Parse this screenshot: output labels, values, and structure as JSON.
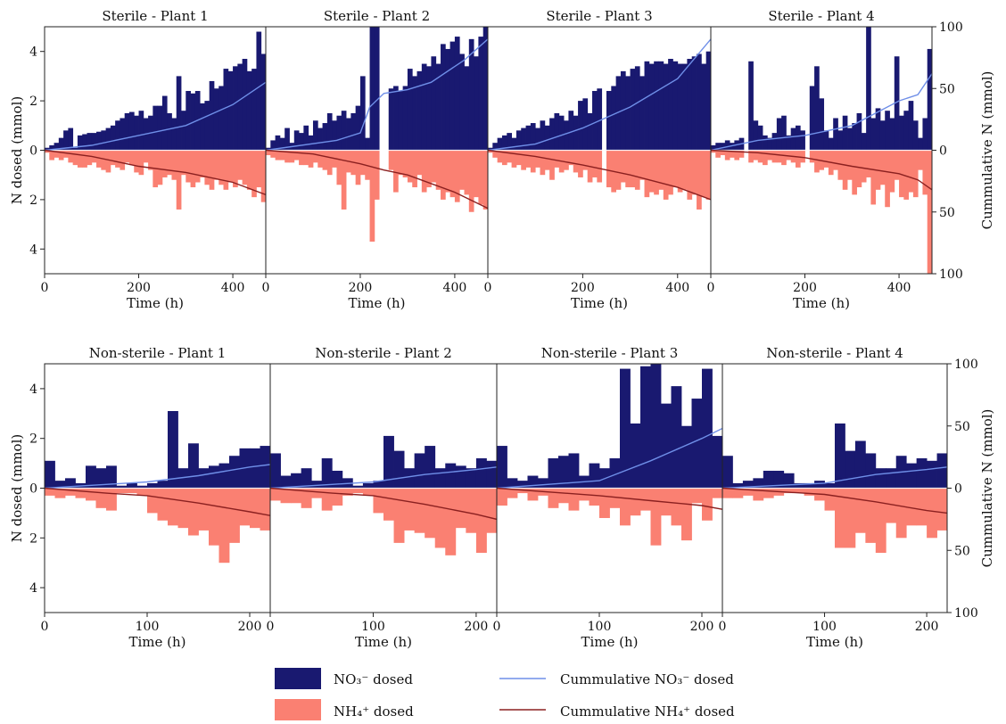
{
  "legend": {
    "no3_bar": "NO₃⁻ dosed",
    "nh4_bar": "NH₄⁺ dosed",
    "no3_line": "Cummulative NO₃⁻ dosed",
    "nh4_line": "Cummulative NH₄⁺ dosed"
  },
  "colors": {
    "no3_bar": "#191970",
    "nh4_bar": "#fa8072",
    "no3_line": "#6f8fe8",
    "nh4_line": "#8b2020"
  },
  "chart_data": [
    {
      "type": "bar",
      "title": "Sterile - Plant 1",
      "xlabel": "Time (h)",
      "ylabel": "N dosed (mmol)",
      "y2label": "",
      "xlim": [
        0,
        470
      ],
      "xticks": [
        0,
        200,
        400
      ],
      "ylim": [
        -5,
        5
      ],
      "yticks": [
        "4",
        "2",
        "0",
        "2",
        "4"
      ],
      "y2lim": [
        -100,
        100
      ],
      "y2ticks": [],
      "bin_width": 10,
      "no3": [
        0.1,
        0.2,
        0.3,
        0.5,
        0.8,
        0.9,
        0.1,
        0.6,
        0.65,
        0.7,
        0.7,
        0.75,
        0.8,
        0.9,
        1.0,
        1.2,
        1.3,
        1.5,
        1.55,
        1.4,
        1.6,
        1.3,
        1.4,
        1.8,
        1.8,
        2.2,
        1.5,
        1.3,
        3.0,
        1.6,
        2.4,
        2.3,
        2.4,
        1.9,
        2.0,
        2.8,
        2.5,
        2.6,
        3.3,
        3.2,
        3.4,
        3.5,
        3.7,
        3.2,
        3.3,
        4.8,
        3.9
      ],
      "nh4": [
        0.1,
        0.4,
        0.3,
        0.4,
        0.3,
        0.5,
        0.6,
        0.7,
        0.7,
        0.6,
        0.5,
        0.7,
        0.8,
        0.9,
        0.6,
        0.7,
        0.8,
        0.5,
        0.6,
        0.9,
        1.0,
        0.5,
        0.8,
        1.5,
        1.4,
        1.1,
        1.0,
        1.2,
        2.4,
        1.0,
        1.3,
        1.5,
        1.3,
        1.1,
        1.4,
        1.6,
        1.2,
        1.4,
        1.6,
        1.3,
        1.5,
        1.2,
        1.4,
        1.6,
        1.9,
        1.5,
        2.1
      ],
      "cum_no3": [
        [
          0,
          0
        ],
        [
          100,
          4
        ],
        [
          200,
          12
        ],
        [
          300,
          20
        ],
        [
          400,
          37
        ],
        [
          470,
          55
        ]
      ],
      "cum_nh4": [
        [
          0,
          0
        ],
        [
          100,
          -5
        ],
        [
          200,
          -13
        ],
        [
          300,
          -18
        ],
        [
          400,
          -26
        ],
        [
          470,
          -36
        ]
      ]
    },
    {
      "type": "bar",
      "title": "Sterile - Plant 2",
      "xlabel": "Time (h)",
      "ylabel": "",
      "y2label": "",
      "xlim": [
        0,
        470
      ],
      "xticks": [
        0,
        200,
        400
      ],
      "ylim": [
        -5,
        5
      ],
      "yticks": [],
      "y2lim": [
        -100,
        100
      ],
      "y2ticks": [],
      "bin_width": 10,
      "no3": [
        0.1,
        0.4,
        0.6,
        0.5,
        0.9,
        0.3,
        0.8,
        0.7,
        1.0,
        0.6,
        1.2,
        0.9,
        1.1,
        1.5,
        1.2,
        1.4,
        1.6,
        1.3,
        1.5,
        1.8,
        3.0,
        0.5,
        5.0,
        5.0,
        0,
        0,
        2.5,
        2.6,
        2.4,
        2.6,
        3.3,
        3.0,
        3.2,
        3.5,
        3.4,
        3.8,
        3.5,
        4.3,
        4.1,
        4.4,
        4.6,
        3.9,
        3.4,
        4.5,
        3.8,
        4.6,
        5.0
      ],
      "nh4": [
        0.2,
        0.3,
        0.4,
        0.4,
        0.5,
        0.5,
        0.4,
        0.6,
        0.6,
        0.7,
        0.5,
        0.7,
        0.8,
        1.0,
        0.7,
        1.4,
        2.4,
        0.9,
        1.0,
        1.4,
        1.0,
        1.2,
        3.7,
        2.0,
        0,
        0,
        0.8,
        1.7,
        1.0,
        1.1,
        1.3,
        1.5,
        1.0,
        1.7,
        1.5,
        1.3,
        1.6,
        2.0,
        1.7,
        1.9,
        2.1,
        1.6,
        1.8,
        2.5,
        1.9,
        2.2,
        2.4
      ],
      "cum_no3": [
        [
          0,
          0
        ],
        [
          150,
          8
        ],
        [
          200,
          14
        ],
        [
          220,
          35
        ],
        [
          250,
          46
        ],
        [
          300,
          49
        ],
        [
          350,
          55
        ],
        [
          420,
          73
        ],
        [
          470,
          90
        ]
      ],
      "cum_nh4": [
        [
          0,
          0
        ],
        [
          100,
          -3
        ],
        [
          200,
          -11
        ],
        [
          250,
          -16
        ],
        [
          300,
          -20
        ],
        [
          400,
          -34
        ],
        [
          470,
          -47
        ]
      ]
    },
    {
      "type": "bar",
      "title": "Sterile - Plant 3",
      "xlabel": "Time (h)",
      "ylabel": "",
      "y2label": "",
      "xlim": [
        0,
        470
      ],
      "xticks": [
        0,
        200,
        400
      ],
      "ylim": [
        -5,
        5
      ],
      "yticks": [],
      "y2lim": [
        -100,
        100
      ],
      "y2ticks": [],
      "bin_width": 10,
      "no3": [
        0.1,
        0.3,
        0.5,
        0.6,
        0.7,
        0.5,
        0.8,
        0.9,
        1.0,
        1.1,
        0.9,
        1.2,
        1.0,
        1.3,
        1.5,
        1.4,
        1.2,
        1.6,
        1.4,
        2.0,
        2.1,
        1.5,
        2.4,
        2.5,
        0,
        2.4,
        2.6,
        3.0,
        3.2,
        3.0,
        3.3,
        3.4,
        3.0,
        3.6,
        3.5,
        3.6,
        3.6,
        3.5,
        3.7,
        3.6,
        3.5,
        3.5,
        3.7,
        3.8,
        3.9,
        3.5,
        4.0
      ],
      "nh4": [
        0.1,
        0.3,
        0.5,
        0.6,
        0.5,
        0.7,
        0.6,
        0.8,
        0.7,
        0.9,
        0.7,
        1.0,
        0.8,
        1.2,
        0.7,
        0.9,
        0.8,
        0.6,
        0.9,
        1.1,
        0.8,
        1.3,
        1.1,
        1.3,
        0,
        1.5,
        1.7,
        1.6,
        1.3,
        1.5,
        1.5,
        1.6,
        1.2,
        1.9,
        1.7,
        1.8,
        1.6,
        2.0,
        1.8,
        1.5,
        1.7,
        1.6,
        2.0,
        1.8,
        2.4,
        1.9,
        2.0
      ],
      "cum_no3": [
        [
          0,
          0
        ],
        [
          100,
          5
        ],
        [
          200,
          18
        ],
        [
          300,
          35
        ],
        [
          400,
          58
        ],
        [
          470,
          90
        ]
      ],
      "cum_nh4": [
        [
          0,
          0
        ],
        [
          100,
          -5
        ],
        [
          200,
          -12
        ],
        [
          300,
          -20
        ],
        [
          400,
          -30
        ],
        [
          470,
          -40
        ]
      ]
    },
    {
      "type": "bar",
      "title": "Sterile - Plant 4",
      "xlabel": "Time (h)",
      "ylabel": "",
      "y2label": "Cummulative N (mmol)",
      "xlim": [
        0,
        470
      ],
      "xticks": [
        0,
        200,
        400
      ],
      "ylim": [
        -5,
        5
      ],
      "yticks": [],
      "y2lim": [
        -100,
        100
      ],
      "y2ticks": [
        "100",
        "50",
        "0",
        "50",
        "100"
      ],
      "bin_width": 10,
      "no3": [
        0.2,
        0.3,
        0.3,
        0.4,
        0.3,
        0.4,
        0.5,
        0,
        3.6,
        1.2,
        1.0,
        0.6,
        0.5,
        0.7,
        1.3,
        1.4,
        0.6,
        0.9,
        1.0,
        0.8,
        0,
        2.6,
        3.4,
        2.1,
        0.8,
        0.5,
        1.3,
        0.8,
        1.4,
        0.9,
        1.1,
        1.5,
        0.7,
        5.0,
        1.3,
        1.7,
        1.2,
        1.6,
        1.3,
        3.8,
        1.4,
        1.6,
        2.0,
        1.2,
        0.5,
        1.3,
        4.1,
        5.0
      ],
      "nh4": [
        0.1,
        0.3,
        0.2,
        0.4,
        0.3,
        0.4,
        0.3,
        0,
        0.5,
        0.4,
        0.5,
        0.6,
        0.4,
        0.5,
        0.5,
        0.6,
        0.4,
        0.5,
        0.7,
        0.5,
        0,
        0.5,
        0.9,
        0.8,
        0.7,
        1.0,
        0.8,
        1.2,
        1.6,
        1.2,
        1.8,
        1.5,
        1.3,
        1.1,
        2.2,
        1.6,
        1.4,
        2.3,
        1.7,
        1.2,
        1.9,
        2.0,
        1.7,
        1.9,
        0.8,
        1.8,
        5.0,
        5.0
      ],
      "cum_no3": [
        [
          0,
          0
        ],
        [
          100,
          8
        ],
        [
          200,
          12
        ],
        [
          300,
          20
        ],
        [
          400,
          40
        ],
        [
          440,
          45
        ],
        [
          470,
          62
        ]
      ],
      "cum_nh4": [
        [
          0,
          0
        ],
        [
          100,
          -2
        ],
        [
          200,
          -6
        ],
        [
          300,
          -13
        ],
        [
          400,
          -19
        ],
        [
          440,
          -24
        ],
        [
          470,
          -32
        ]
      ]
    },
    {
      "type": "bar",
      "title": "Non-sterile - Plant 1",
      "xlabel": "Time (h)",
      "ylabel": "N dosed (mmol)",
      "y2label": "",
      "xlim": [
        0,
        220
      ],
      "xticks": [
        0,
        100,
        200
      ],
      "ylim": [
        -5,
        5
      ],
      "yticks": [
        "4",
        "2",
        "0",
        "2",
        "4"
      ],
      "y2lim": [
        -100,
        100
      ],
      "y2ticks": [],
      "bin_width": 10,
      "no3": [
        1.1,
        0.3,
        0.4,
        0.2,
        0.9,
        0.8,
        0.9,
        0.1,
        0.2,
        0.1,
        0.2,
        0.3,
        3.1,
        0.8,
        1.8,
        0.8,
        0.9,
        1.0,
        1.3,
        1.6,
        1.6,
        1.7,
        1.8
      ],
      "nh4": [
        0.3,
        0.4,
        0.3,
        0.4,
        0.5,
        0.8,
        0.9,
        0.2,
        0.2,
        0.3,
        1.0,
        1.3,
        1.5,
        1.6,
        1.9,
        1.7,
        2.3,
        3.0,
        2.2,
        1.5,
        1.6,
        1.7,
        1.5
      ],
      "cum_no3": [
        [
          0,
          0
        ],
        [
          60,
          3
        ],
        [
          100,
          5
        ],
        [
          150,
          10
        ],
        [
          200,
          17
        ],
        [
          220,
          19
        ]
      ],
      "cum_nh4": [
        [
          0,
          0
        ],
        [
          60,
          -4
        ],
        [
          100,
          -6
        ],
        [
          150,
          -12
        ],
        [
          200,
          -19
        ],
        [
          220,
          -22
        ]
      ]
    },
    {
      "type": "bar",
      "title": "Non-sterile - Plant 2",
      "xlabel": "Time (h)",
      "ylabel": "",
      "y2label": "",
      "xlim": [
        0,
        220
      ],
      "xticks": [
        0,
        100,
        200
      ],
      "ylim": [
        -5,
        5
      ],
      "yticks": [],
      "y2lim": [
        -100,
        100
      ],
      "y2ticks": [],
      "bin_width": 10,
      "no3": [
        1.4,
        0.5,
        0.6,
        0.8,
        0.3,
        1.2,
        0.7,
        0.4,
        0.1,
        0.2,
        0.3,
        2.1,
        1.5,
        0.8,
        1.4,
        1.7,
        0.8,
        1.0,
        0.9,
        0.8,
        1.2,
        1.1,
        1.2
      ],
      "nh4": [
        0.5,
        0.6,
        0.6,
        0.8,
        0.4,
        0.9,
        0.7,
        0.3,
        0.2,
        0.3,
        1.0,
        1.3,
        2.2,
        1.7,
        1.8,
        2.0,
        2.4,
        2.7,
        1.6,
        1.8,
        2.6,
        1.8,
        1.8
      ],
      "cum_no3": [
        [
          0,
          0
        ],
        [
          60,
          3
        ],
        [
          100,
          5
        ],
        [
          150,
          11
        ],
        [
          200,
          15
        ],
        [
          220,
          17
        ]
      ],
      "cum_nh4": [
        [
          0,
          0
        ],
        [
          60,
          -4
        ],
        [
          100,
          -6
        ],
        [
          150,
          -13
        ],
        [
          200,
          -21
        ],
        [
          220,
          -25
        ]
      ]
    },
    {
      "type": "bar",
      "title": "Non-sterile - Plant 3",
      "xlabel": "Time (h)",
      "ylabel": "",
      "y2label": "",
      "xlim": [
        0,
        220
      ],
      "xticks": [
        0,
        100,
        200
      ],
      "ylim": [
        -5,
        5
      ],
      "yticks": [],
      "y2lim": [
        -100,
        100
      ],
      "y2ticks": [],
      "bin_width": 10,
      "no3": [
        1.7,
        0.4,
        0.3,
        0.5,
        0.4,
        1.2,
        1.3,
        1.4,
        0.5,
        1.0,
        0.8,
        1.2,
        4.8,
        2.6,
        4.9,
        5.0,
        3.4,
        4.1,
        2.5,
        3.6,
        4.8,
        2.1,
        5.0
      ],
      "nh4": [
        0.7,
        0.4,
        0.2,
        0.5,
        0.3,
        0.8,
        0.6,
        0.9,
        0.5,
        0.7,
        1.2,
        0.8,
        1.5,
        1.1,
        0.9,
        2.3,
        1.1,
        1.5,
        2.1,
        0.6,
        1.3,
        0.4,
        3.0
      ],
      "cum_no3": [
        [
          0,
          0
        ],
        [
          100,
          6
        ],
        [
          150,
          22
        ],
        [
          200,
          40
        ],
        [
          220,
          48
        ]
      ],
      "cum_nh4": [
        [
          0,
          0
        ],
        [
          100,
          -6
        ],
        [
          150,
          -10
        ],
        [
          200,
          -14
        ],
        [
          220,
          -17
        ]
      ]
    },
    {
      "type": "bar",
      "title": "Non-sterile - Plant 4",
      "xlabel": "Time (h)",
      "ylabel": "",
      "y2label": "Cummulative N (mmol)",
      "xlim": [
        0,
        220
      ],
      "xticks": [
        0,
        100,
        200
      ],
      "ylim": [
        -5,
        5
      ],
      "yticks": [],
      "y2lim": [
        -100,
        100
      ],
      "y2ticks": [
        "100",
        "50",
        "0",
        "50",
        "100"
      ],
      "bin_width": 10,
      "no3": [
        1.3,
        0.2,
        0.3,
        0.4,
        0.7,
        0.7,
        0.6,
        0.2,
        0.2,
        0.3,
        0.2,
        2.6,
        1.5,
        1.9,
        1.4,
        0.8,
        0.8,
        1.3,
        1.0,
        1.2,
        1.1,
        1.4
      ],
      "nh4": [
        0.4,
        0.4,
        0.3,
        0.5,
        0.4,
        0.3,
        0.2,
        0.2,
        0.3,
        0.5,
        0.9,
        2.4,
        2.4,
        1.8,
        2.2,
        2.6,
        1.4,
        2.0,
        1.5,
        1.5,
        2.0,
        1.7
      ],
      "cum_no3": [
        [
          0,
          0
        ],
        [
          100,
          4
        ],
        [
          150,
          11
        ],
        [
          200,
          15
        ],
        [
          220,
          17
        ]
      ],
      "cum_nh4": [
        [
          0,
          0
        ],
        [
          100,
          -5
        ],
        [
          150,
          -11
        ],
        [
          200,
          -18
        ],
        [
          220,
          -20
        ]
      ]
    }
  ]
}
